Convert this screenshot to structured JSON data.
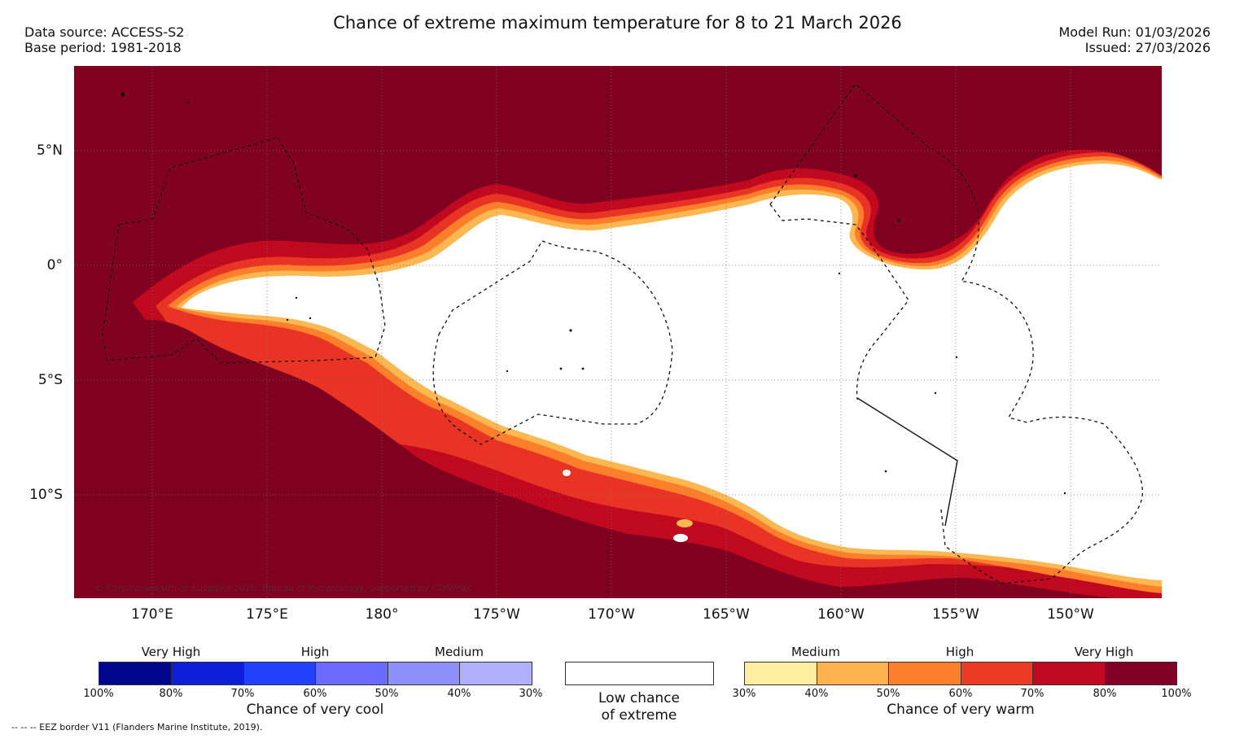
{
  "header": {
    "title": "Chance of extreme maximum temperature for 8 to 21 March 2026",
    "data_source": "Data source: ACCESS-S2",
    "base_period": "Base period: 1981-2018",
    "model_run": "Model Run: 01/03/2026",
    "issued": "Issued: 27/03/2026"
  },
  "map": {
    "lat_labels": [
      "5°N",
      "0°",
      "5°S",
      "10°S"
    ],
    "lon_labels": [
      "170°E",
      "175°E",
      "180°",
      "175°W",
      "170°W",
      "165°W",
      "160°W",
      "155°W",
      "150°W"
    ],
    "copyright": "© Commonwealth of Australia 2026, Bureau of Meteorology, supported by COSPPac",
    "colors": {
      "very_high_warm": "#800020",
      "high_warm_2": "#c0081f",
      "high_warm_1": "#e93425",
      "medium_warm_2": "#fd7f2c",
      "medium_warm_1": "#fdb852",
      "low_warm": "#fff09e",
      "no_signal": "#ffffff"
    }
  },
  "legend": {
    "cool": {
      "headings": [
        "Very High",
        "High",
        "Medium"
      ],
      "ticks": [
        "100%",
        "80%",
        "70%",
        "60%",
        "50%",
        "40%",
        "30%"
      ],
      "caption": "Chance of very cool",
      "colors": [
        "#00078f",
        "#0b20d8",
        "#2241fd",
        "#6b6bff",
        "#8e8eff",
        "#b0b0ff"
      ]
    },
    "neutral": {
      "caption_line1": "Low chance",
      "caption_line2": "of extreme"
    },
    "warm": {
      "headings": [
        "Medium",
        "High",
        "Very High"
      ],
      "ticks": [
        "30%",
        "40%",
        "50%",
        "60%",
        "70%",
        "80%",
        "100%"
      ],
      "caption": "Chance of very warm",
      "colors": [
        "#ffeda0",
        "#feb24c",
        "#fd7f2c",
        "#ec3a25",
        "#c10821",
        "#800026"
      ]
    }
  },
  "footer": {
    "eez_note": "--  --  -- EEZ border V11 (Flanders Marine Institute, 2019)."
  }
}
